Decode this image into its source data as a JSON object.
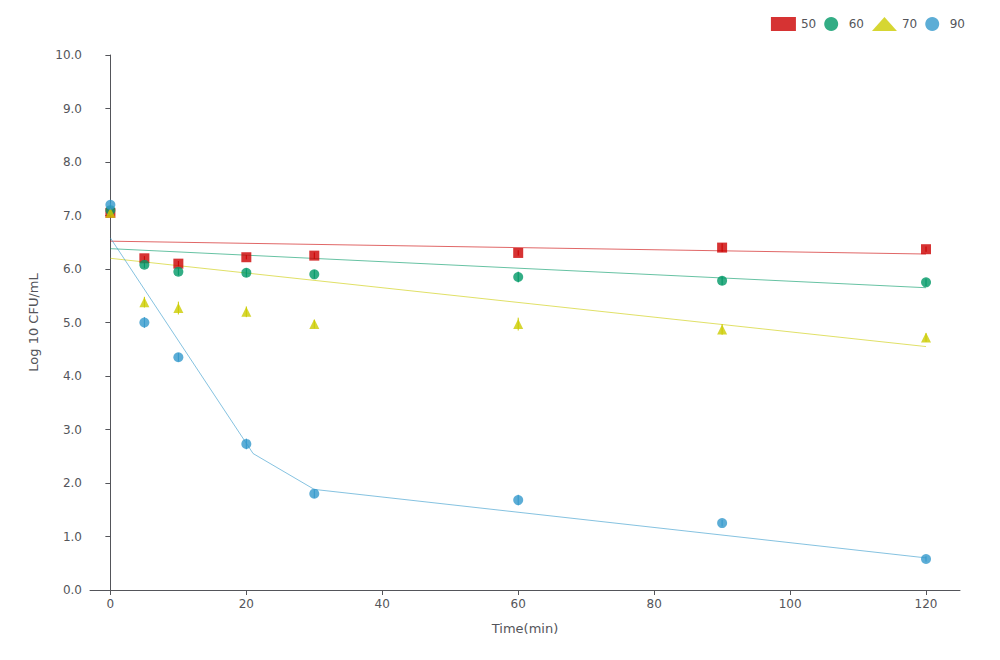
{
  "chart_data": {
    "type": "scatter",
    "xlabel": "Time(min)",
    "ylabel": "Log 10 CFU/mL",
    "xlim": [
      -3,
      125
    ],
    "ylim": [
      0.0,
      10.0
    ],
    "xticks": [
      0,
      20,
      40,
      60,
      80,
      100,
      120
    ],
    "yticks": [
      {
        "value": 0.0,
        "label": "0.0"
      },
      {
        "value": 1.0,
        "label": "1.0"
      },
      {
        "value": 2.0,
        "label": "2.0"
      },
      {
        "value": 3.0,
        "label": "3.0"
      },
      {
        "value": 4.0,
        "label": "4.0"
      },
      {
        "value": 5.0,
        "label": "5.0"
      },
      {
        "value": 6.0,
        "label": "6.0"
      },
      {
        "value": 7.0,
        "label": "7.0"
      },
      {
        "value": 8.0,
        "label": "8.0"
      },
      {
        "value": 9.0,
        "label": "9.0"
      },
      {
        "value": 10.0,
        "label": "10.0"
      }
    ],
    "grid": false,
    "legend": "upper right",
    "series": [
      {
        "name": "50",
        "color": "#cc0000",
        "marker": "square",
        "x": [
          0,
          5,
          10,
          20,
          30,
          60,
          90,
          120
        ],
        "values": [
          7.05,
          6.2,
          6.1,
          6.22,
          6.25,
          6.3,
          6.4,
          6.37
        ],
        "yerr": [
          0.04,
          0.04,
          0.05,
          0.04,
          0.06,
          0.05,
          0.08,
          0.05
        ],
        "fit": {
          "x": [
            0,
            120
          ],
          "values": [
            6.52,
            6.28
          ]
        }
      },
      {
        "name": "60",
        "color": "#009966",
        "marker": "circle",
        "x": [
          0,
          5,
          10,
          20,
          30,
          60,
          90,
          120
        ],
        "values": [
          7.1,
          6.08,
          5.95,
          5.93,
          5.9,
          5.85,
          5.78,
          5.75
        ],
        "yerr": [
          0.04,
          0.06,
          0.07,
          0.08,
          0.08,
          0.1,
          0.08,
          0.07
        ],
        "fit": {
          "x": [
            0,
            120
          ],
          "values": [
            6.38,
            5.65
          ]
        }
      },
      {
        "name": "70",
        "color": "#cccc00",
        "marker": "triangle",
        "x": [
          0,
          5,
          10,
          20,
          30,
          60,
          90,
          120
        ],
        "values": [
          7.05,
          5.38,
          5.27,
          5.2,
          4.97,
          4.97,
          4.87,
          4.72
        ],
        "yerr": [
          0.04,
          0.1,
          0.12,
          0.1,
          0.08,
          0.12,
          0.1,
          0.08
        ],
        "fit": {
          "x": [
            0,
            120
          ],
          "values": [
            6.2,
            4.55
          ]
        }
      },
      {
        "name": "90",
        "color": "#3399cc",
        "marker": "circle",
        "x": [
          0,
          5,
          10,
          20,
          30,
          60,
          90,
          120
        ],
        "values": [
          7.2,
          5.0,
          4.35,
          2.73,
          1.8,
          1.68,
          1.25,
          0.58
        ],
        "yerr": [
          0.04,
          0.1,
          0.08,
          0.1,
          0.08,
          0.1,
          0.06,
          0.05
        ],
        "fit": {
          "x": [
            0,
            21,
            30,
            120
          ],
          "values": [
            6.58,
            2.55,
            1.88,
            0.6
          ]
        }
      }
    ]
  }
}
